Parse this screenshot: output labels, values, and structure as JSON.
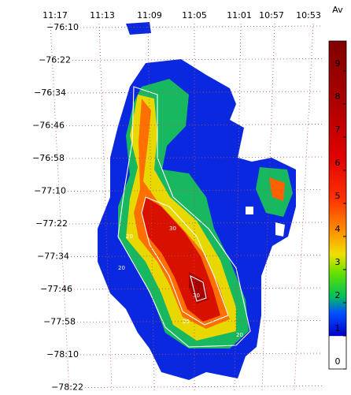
{
  "x_labels": [
    "11:17",
    "11:13",
    "11:09",
    "11:05",
    "11:01",
    "10:57",
    "10:53"
  ],
  "y_labels": [
    "−76:10",
    "−76:22",
    "−76:34",
    "−76:46",
    "−76:58",
    "−77:10",
    "−77:22",
    "−77:34",
    "−77:46",
    "−77:58",
    "−78:10",
    "−78:22"
  ],
  "colorbar": {
    "title": "Av",
    "ticks": [
      0,
      1,
      2,
      3,
      4,
      5,
      6,
      7,
      8,
      9
    ],
    "lim": [
      0,
      9.9
    ]
  },
  "contour_labels": [
    "20",
    "30",
    "30",
    "25",
    "20",
    "20"
  ]
}
